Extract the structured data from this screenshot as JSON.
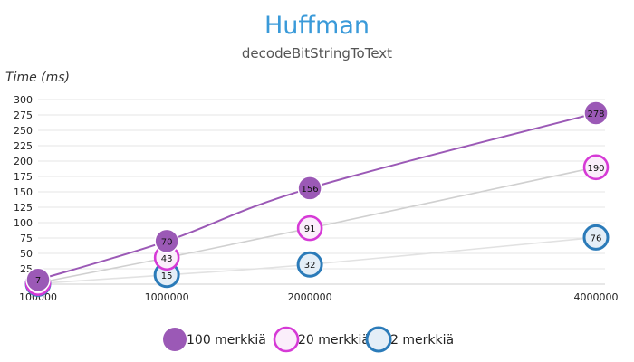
{
  "chart_data": {
    "type": "line",
    "title": "Huffman",
    "subtitle": "decodeBitStringToText",
    "ylabel": "Time (ms)",
    "xlabel": "",
    "categories": [
      "100000",
      "1000000",
      "2000000",
      "4000000"
    ],
    "ylim": [
      0,
      300
    ],
    "yticks": [
      25,
      50,
      75,
      100,
      125,
      150,
      175,
      200,
      225,
      250,
      275,
      300
    ],
    "grid": true,
    "legend": "bottom",
    "series": [
      {
        "name": "100 merkkiä",
        "values": [
          7,
          70,
          156,
          278
        ],
        "color": "#9b59b6",
        "line_color": "#9b59b6",
        "marker": "filled",
        "labels": [
          "7",
          "70",
          "156",
          "278"
        ]
      },
      {
        "name": "20 merkkiä",
        "values": [
          2,
          43,
          91,
          190
        ],
        "color": "#d63ad6",
        "line_color": "#d0d0d0",
        "marker": "ring-light",
        "labels": [
          "",
          "43",
          "91",
          "190"
        ]
      },
      {
        "name": "2 merkkiä",
        "values": [
          1,
          15,
          32,
          76
        ],
        "color": "#2b7bb9",
        "line_color": "#e2e2e2",
        "marker": "ring-pale",
        "labels": [
          "",
          "15",
          "32",
          "76"
        ]
      }
    ]
  },
  "colors": {
    "title": "#3a9ad9",
    "subtitle": "#555555",
    "grid": "#e6e6e6",
    "axis": "#cfcfcf"
  }
}
